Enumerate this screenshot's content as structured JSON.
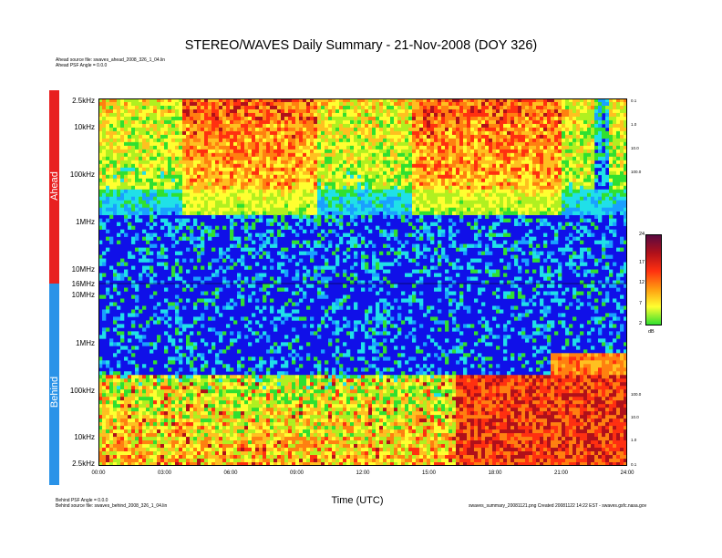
{
  "title": "STEREO/WAVES Daily Summary - 21-Nov-2008 (DOY 326)",
  "notes": {
    "ahead_source": "Ahead source file: swaves_ahead_2008_326_1_04.lin",
    "ahead_psf": "Ahead PSF Angle = 0.0.0",
    "behind_psf": "Behind PSF Angle = 0.0.0",
    "behind_source": "Behind source file: swaves_behind_2008_326_1_04.lin",
    "footer_right": "swaves_summary_20081121.png Created 20081122 14:22 EST - swaves.gsfc.nasa.gov"
  },
  "panels": {
    "ahead": "Ahead",
    "behind": "Behind"
  },
  "colors": {
    "ahead_bar": "#e82020",
    "behind_bar": "#2a93e8",
    "background": "#1010e8"
  },
  "chart_data": {
    "type": "heatmap",
    "title": "STEREO/WAVES Daily Summary - 21-Nov-2008 (DOY 326)",
    "xlabel": "Time (UTC)",
    "x_ticks": [
      "00:00",
      "03:00",
      "06:00",
      "09:00",
      "12:00",
      "15:00",
      "18:00",
      "21:00",
      "24:00"
    ],
    "xlim_hours": [
      0,
      24
    ],
    "ahead_y_ticks": [
      "2.5kHz",
      "10kHz",
      "100kHz",
      "1MHz",
      "10MHz",
      "16MHz"
    ],
    "behind_y_ticks": [
      "10MHz",
      "1MHz",
      "100kHz",
      "10kHz",
      "2.5kHz"
    ],
    "y_scale": "log",
    "colorbar": {
      "unit": "dB",
      "ticks": [
        "24",
        "17",
        "12",
        "7",
        "2"
      ],
      "range": [
        2,
        24
      ],
      "colors": [
        "#5a0a40",
        "#b0101a",
        "#ff3010",
        "#ff9a10",
        "#ffff30",
        "#30e030"
      ]
    },
    "right_ticks_ahead": [
      "0.1",
      "1.0",
      "10.0",
      "100.0"
    ],
    "right_ticks_behind": [
      "100.0",
      "10.0",
      "1.0",
      "0.1"
    ],
    "events": [
      {
        "panel": "ahead",
        "description": "enhanced emission",
        "start_hour": 3.8,
        "end_hour": 10.0
      },
      {
        "panel": "ahead",
        "description": "enhanced emission",
        "start_hour": 14.3,
        "end_hour": 21.0
      },
      {
        "panel": "behind",
        "description": "strong broadband emission",
        "start_hour": 16.3,
        "end_hour": 24.0
      }
    ]
  }
}
